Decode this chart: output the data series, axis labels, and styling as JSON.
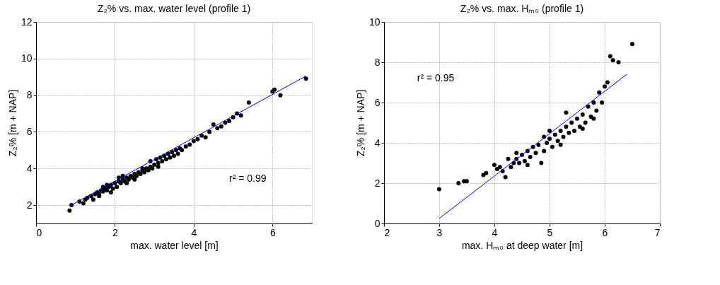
{
  "chart_data": [
    {
      "type": "scatter",
      "title": "Z₂% vs. max. water level (profile 1)",
      "xlabel": "max. water level [m]",
      "ylabel": "Z₂% [m + NAP]",
      "xlim": [
        0,
        7
      ],
      "ylim": [
        1,
        12
      ],
      "xticks": [
        0,
        2,
        4,
        6
      ],
      "yticks": [
        2,
        4,
        6,
        8,
        10,
        12
      ],
      "grid": true,
      "marker": "circle",
      "annotations": [
        "r² = 0.99"
      ],
      "series": [
        {
          "color": "#000000",
          "x": [
            0.85,
            0.9,
            1.1,
            1.2,
            1.25,
            1.3,
            1.4,
            1.45,
            1.5,
            1.55,
            1.6,
            1.65,
            1.7,
            1.75,
            1.8,
            1.85,
            1.9,
            1.95,
            2.0,
            2.05,
            2.1,
            2.15,
            2.2,
            2.25,
            2.3,
            2.35,
            2.4,
            2.45,
            2.5,
            2.55,
            2.6,
            2.65,
            2.7,
            2.75,
            2.8,
            2.85,
            2.9,
            2.95,
            3.0,
            3.05,
            3.1,
            3.15,
            3.2,
            3.25,
            3.3,
            3.35,
            3.4,
            3.45,
            3.5,
            3.55,
            3.6,
            3.65,
            3.7,
            3.8,
            3.9,
            4.0,
            4.1,
            4.2,
            4.3,
            4.4,
            4.5,
            4.6,
            4.7,
            4.8,
            4.9,
            5.0,
            5.1,
            5.2,
            5.4,
            6.0,
            6.05,
            6.2,
            6.85,
            1.7,
            1.9,
            2.1,
            2.3,
            2.5,
            2.7,
            2.2,
            2.9,
            3.1,
            1.6,
            1.8
          ],
          "values": [
            1.7,
            2.0,
            2.2,
            2.1,
            2.3,
            2.4,
            2.5,
            2.3,
            2.6,
            2.7,
            2.6,
            2.8,
            2.75,
            2.9,
            2.8,
            3.0,
            3.1,
            2.9,
            3.2,
            3.0,
            3.3,
            3.2,
            3.4,
            3.3,
            3.5,
            3.4,
            3.6,
            3.5,
            3.7,
            3.6,
            3.8,
            3.7,
            3.9,
            3.8,
            4.0,
            3.9,
            4.1,
            4.0,
            4.2,
            4.5,
            4.3,
            4.6,
            4.4,
            4.7,
            4.5,
            4.8,
            4.6,
            4.9,
            4.7,
            5.0,
            4.8,
            5.1,
            5.0,
            5.2,
            5.3,
            5.5,
            5.6,
            5.8,
            5.7,
            6.0,
            6.4,
            6.2,
            6.3,
            6.5,
            6.6,
            6.8,
            7.0,
            6.9,
            7.6,
            8.2,
            8.3,
            8.0,
            8.9,
            3.0,
            2.7,
            3.5,
            3.2,
            3.4,
            4.0,
            3.6,
            4.4,
            4.1,
            2.5,
            3.1
          ]
        },
        {
          "type": "line",
          "marker": "none",
          "color": "#0000ff",
          "x": [
            0.85,
            6.85
          ],
          "values": [
            1.95,
            9.05
          ]
        }
      ]
    },
    {
      "type": "scatter",
      "title": "Z₂% vs. max. Hₘ₀ (profile 1)",
      "xlabel": "max. Hₘ₀ at deep water [m]",
      "ylabel": "Z₂% [m + NAP]",
      "xlim": [
        2,
        7
      ],
      "ylim": [
        0,
        10
      ],
      "xticks": [
        2,
        3,
        4,
        5,
        6,
        7
      ],
      "yticks": [
        0,
        2,
        4,
        6,
        8,
        10
      ],
      "grid": true,
      "marker": "circle",
      "annotations": [
        "r² = 0.95"
      ],
      "series": [
        {
          "color": "#000000",
          "x": [
            3.0,
            3.35,
            3.45,
            3.5,
            3.8,
            3.85,
            4.0,
            4.05,
            4.1,
            4.15,
            4.2,
            4.25,
            4.3,
            4.35,
            4.4,
            4.45,
            4.5,
            4.55,
            4.6,
            4.65,
            4.7,
            4.75,
            4.8,
            4.85,
            4.9,
            4.95,
            5.0,
            5.05,
            5.1,
            5.15,
            5.2,
            5.25,
            5.3,
            5.35,
            5.4,
            5.45,
            5.5,
            5.55,
            5.6,
            5.65,
            5.7,
            5.75,
            5.8,
            5.85,
            5.9,
            5.95,
            6.0,
            6.05,
            6.1,
            6.15,
            6.25,
            6.5,
            4.6,
            5.2,
            5.6,
            5.3,
            5.0,
            4.4,
            4.9,
            5.8
          ],
          "values": [
            1.7,
            2.0,
            2.1,
            2.1,
            2.4,
            2.5,
            2.9,
            2.7,
            2.8,
            2.6,
            2.3,
            3.2,
            2.8,
            3.0,
            3.2,
            3.0,
            3.4,
            3.1,
            3.6,
            3.3,
            3.8,
            3.5,
            3.9,
            3.0,
            3.6,
            4.0,
            4.2,
            3.8,
            4.4,
            4.1,
            4.6,
            4.3,
            4.8,
            4.5,
            5.0,
            4.6,
            5.2,
            4.8,
            5.4,
            5.0,
            5.8,
            5.3,
            6.0,
            5.6,
            6.5,
            6.0,
            6.8,
            7.0,
            8.3,
            8.1,
            8.0,
            8.9,
            2.9,
            3.9,
            4.7,
            5.5,
            4.6,
            3.5,
            4.3,
            5.2
          ]
        },
        {
          "type": "line",
          "marker": "none",
          "color": "#0000ff",
          "x": [
            3.0,
            6.4
          ],
          "values": [
            0.25,
            7.4
          ]
        }
      ]
    }
  ]
}
